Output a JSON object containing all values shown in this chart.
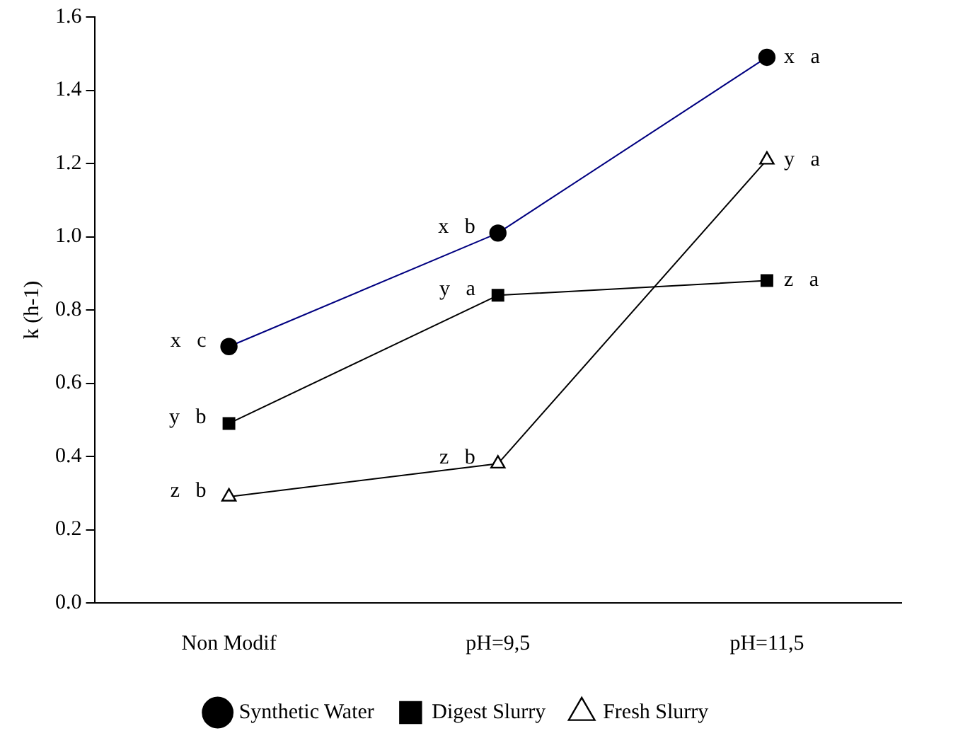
{
  "chart_data": {
    "type": "line",
    "ylabel": "k (h-1)",
    "categories": [
      "Non Modif",
      "pH=9,5",
      "pH=11,5"
    ],
    "series": [
      {
        "name": "Synthetic Water",
        "color": "#000080",
        "values": [
          0.7,
          1.01,
          1.49
        ],
        "marker": "circle"
      },
      {
        "name": "Digest Slurry",
        "color": "#000000",
        "values": [
          0.49,
          0.84,
          0.88
        ],
        "marker": "square"
      },
      {
        "name": "Fresh Slurry",
        "color": "#000000",
        "values": [
          0.29,
          0.38,
          1.21
        ],
        "marker": "triangle"
      }
    ],
    "ylim": [
      0,
      1.6
    ],
    "yticks": [
      {
        "value": 0,
        "label": "0.0"
      },
      0.2,
      0.4,
      0.6,
      0.8,
      {
        "value": 1,
        "label": "1.0"
      },
      1.2,
      1.4,
      1.6
    ],
    "grid": false,
    "legend": "bottom",
    "annotations": [
      {
        "text": "x   c",
        "x": "Non Modif",
        "y": 0.7
      },
      {
        "text": "y   b",
        "x": "Non Modif",
        "y": 0.49
      },
      {
        "text": "z   b",
        "x": "Non Modif",
        "y": 0.29
      },
      {
        "text": "x   b",
        "x": "pH=9,5",
        "y": 1.01
      },
      {
        "text": "y   a",
        "x": "pH=9,5",
        "y": 0.84
      },
      {
        "text": "z   b",
        "x": "pH=9,5",
        "y": 0.38
      },
      {
        "text": "x   a",
        "x": "pH=11,5",
        "y": 1.49
      },
      {
        "text": "z   a",
        "x": "pH=11,5",
        "y": 0.88
      },
      {
        "text": "y   a",
        "x": "pH=11,5",
        "y": 1.21
      }
    ]
  }
}
